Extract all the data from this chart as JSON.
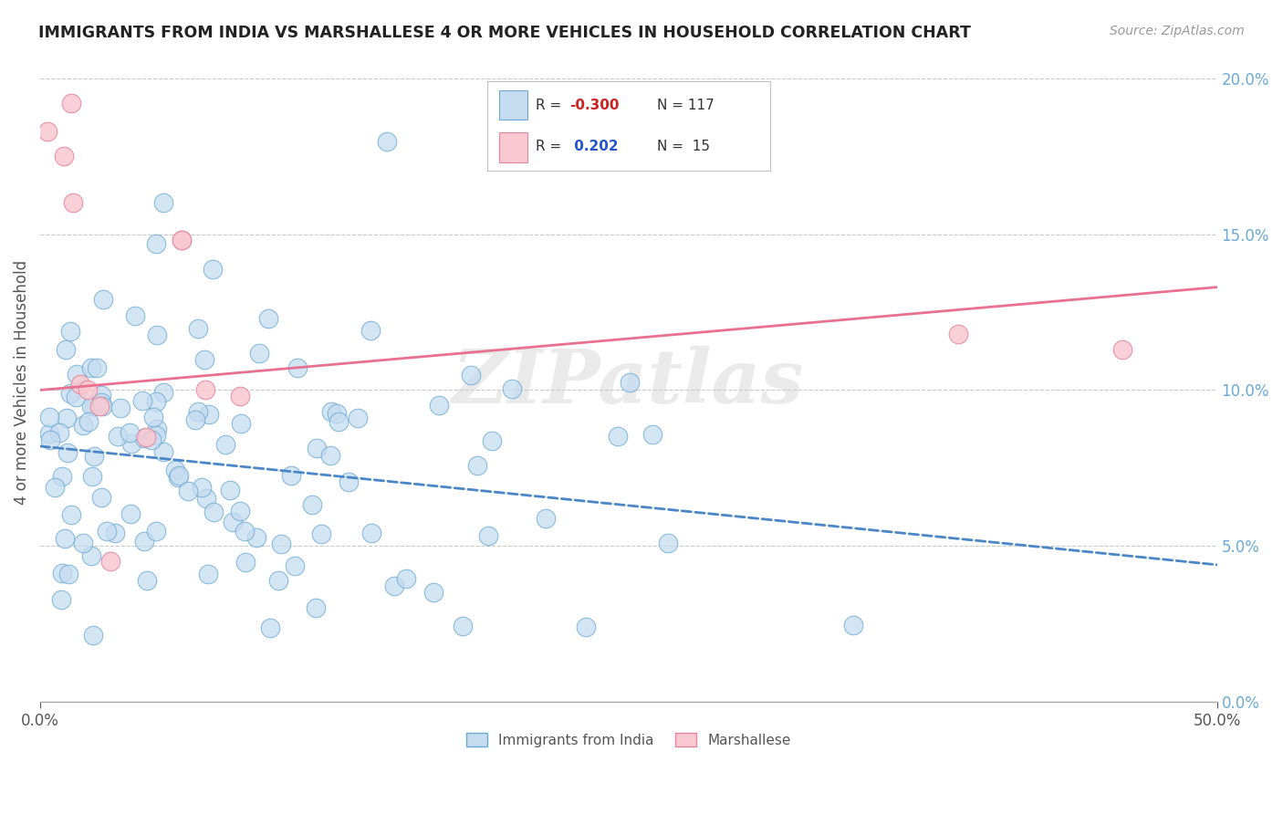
{
  "title": "IMMIGRANTS FROM INDIA VS MARSHALLESE 4 OR MORE VEHICLES IN HOUSEHOLD CORRELATION CHART",
  "source_text": "Source: ZipAtlas.com",
  "ylabel": "4 or more Vehicles in Household",
  "xlim": [
    0.0,
    0.5
  ],
  "ylim": [
    0.0,
    0.205
  ],
  "xticks": [
    0.0,
    0.5
  ],
  "xticklabels": [
    "0.0%",
    "50.0%"
  ],
  "yticks": [
    0.0,
    0.05,
    0.1,
    0.15,
    0.2
  ],
  "yticklabels": [
    "0.0%",
    "5.0%",
    "10.0%",
    "15.0%",
    "20.0%"
  ],
  "india_color": "#c5dbf0",
  "india_edge_color": "#6aaad4",
  "marshallese_color": "#f9c8d0",
  "marshallese_edge_color": "#e8859a",
  "india_line_color": "#4a86c8",
  "marshallese_line_color": "#e87090",
  "background_color": "#ffffff",
  "grid_color": "#c8c8c8",
  "title_color": "#222222",
  "watermark": "ZIPatlas",
  "india_R": -0.3,
  "india_N": 117,
  "marshallese_R": 0.202,
  "marshallese_N": 15,
  "india_line_x0": 0.0,
  "india_line_y0": 0.082,
  "india_line_x1": 0.5,
  "india_line_y1": 0.044,
  "marsh_line_x0": 0.0,
  "marsh_line_y0": 0.1,
  "marsh_line_x1": 0.5,
  "marsh_line_y1": 0.133
}
